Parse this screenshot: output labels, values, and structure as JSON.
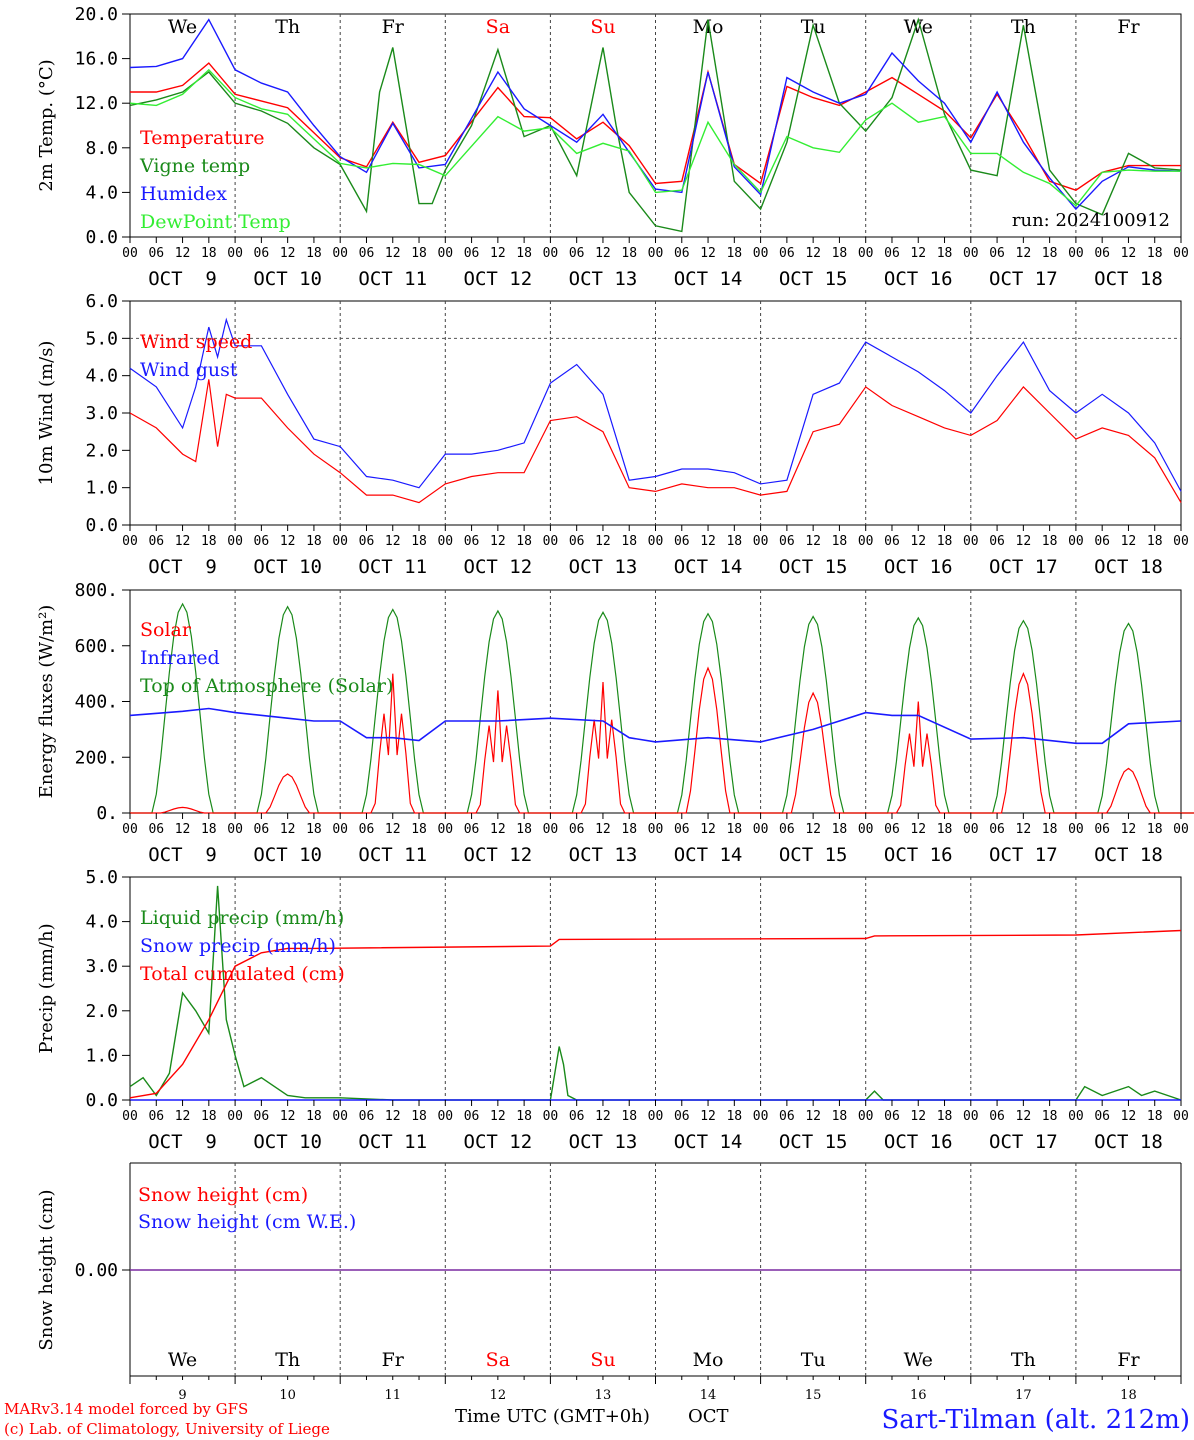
{
  "footer": {
    "model": "MARv3.14 model forced by GFS",
    "copyright": "(c) Lab. of Climatology, University of Liege",
    "xlabel": "Time UTC (GMT+0h)",
    "month": "OCT",
    "station": "Sart-Tilman (alt. 212m)"
  },
  "days": {
    "dates": [
      "9",
      "10",
      "11",
      "12",
      "13",
      "14",
      "15",
      "16",
      "17",
      "18"
    ],
    "date_labels": [
      "OCT  9",
      "OCT 10",
      "OCT 11",
      "OCT 12",
      "OCT 13",
      "OCT 14",
      "OCT 15",
      "OCT 16",
      "OCT 17",
      "OCT 18"
    ],
    "weekdays": [
      "We",
      "Th",
      "Fr",
      "Sa",
      "Su",
      "Mo",
      "Tu",
      "We",
      "Th",
      "Fr"
    ],
    "weekend_color": "#ff0000",
    "hour_ticks": [
      "00",
      "06",
      "12",
      "18"
    ]
  },
  "colors": {
    "red": "#ff0000",
    "green": "#1a8a1a",
    "blue": "#1a1aff",
    "lightgreen": "#33ee33",
    "purple": "#7a2aa0"
  },
  "chart_data": [
    {
      "type": "line",
      "ylabel": "2m Temp. (°C)",
      "ylim": [
        0,
        20
      ],
      "yticks": [
        "0.0",
        "4.0",
        "8.0",
        "12.0",
        "16.0",
        "20.0"
      ],
      "annotation": "run: 2024100912",
      "x_unit": "hours since Oct 9 00 UTC",
      "series": [
        {
          "name": "Temperature",
          "color": "red",
          "x": [
            0,
            6,
            12,
            18,
            24,
            36,
            48,
            54,
            60,
            66,
            72,
            84,
            90,
            96,
            102,
            108,
            114,
            120,
            126,
            132,
            138,
            144,
            150,
            156,
            162,
            168,
            174,
            180,
            186,
            192,
            198,
            204,
            210,
            216,
            222,
            228,
            234,
            240
          ],
          "y": [
            13.0,
            13.0,
            13.6,
            15.6,
            12.8,
            11.6,
            7.1,
            6.3,
            10.3,
            6.7,
            7.3,
            13.4,
            10.8,
            10.7,
            8.8,
            10.3,
            8.2,
            4.8,
            5.0,
            14.8,
            6.5,
            4.8,
            13.5,
            12.5,
            11.8,
            13.0,
            14.3,
            12.8,
            11.3,
            8.9,
            12.8,
            9.1,
            5.0,
            4.2,
            5.8,
            6.4,
            6.4,
            6.4
          ]
        },
        {
          "name": "Vigne temp",
          "color": "green",
          "x": [
            0,
            6,
            12,
            18,
            24,
            30,
            36,
            42,
            48,
            54,
            57,
            60,
            63,
            66,
            69,
            72,
            78,
            84,
            90,
            96,
            102,
            108,
            111,
            114,
            120,
            126,
            132,
            138,
            144,
            150,
            156,
            162,
            168,
            174,
            180,
            186,
            192,
            198,
            204,
            210,
            216,
            222,
            228,
            234,
            240
          ],
          "y": [
            11.8,
            12.3,
            13.0,
            14.8,
            12.0,
            11.3,
            10.2,
            8.0,
            6.5,
            2.3,
            13.0,
            17.0,
            10.0,
            3.0,
            3.0,
            6.0,
            10.0,
            16.8,
            9.0,
            10.0,
            5.5,
            17.0,
            10.0,
            4.0,
            1.0,
            0.5,
            19.5,
            5.0,
            2.5,
            8.5,
            19.0,
            12.0,
            9.5,
            12.5,
            19.5,
            11.0,
            6.0,
            5.5,
            19.0,
            6.0,
            3.0,
            2.0,
            7.5,
            6.2,
            6.0
          ]
        },
        {
          "name": "Humidex",
          "color": "blue",
          "x": [
            0,
            6,
            12,
            18,
            24,
            30,
            36,
            42,
            48,
            54,
            60,
            66,
            72,
            84,
            90,
            96,
            102,
            108,
            114,
            120,
            126,
            132,
            138,
            144,
            150,
            156,
            162,
            168,
            174,
            180,
            186,
            192,
            198,
            204,
            210,
            216,
            222,
            228,
            234,
            240
          ],
          "y": [
            15.2,
            15.3,
            16.0,
            19.5,
            15.0,
            13.8,
            13.0,
            10.0,
            7.2,
            5.8,
            10.2,
            6.2,
            6.5,
            14.8,
            11.5,
            10.0,
            8.5,
            11.0,
            7.6,
            4.3,
            4.0,
            14.8,
            6.3,
            3.8,
            14.3,
            13.0,
            12.0,
            12.8,
            16.5,
            14.0,
            12.0,
            8.5,
            13.0,
            8.5,
            5.3,
            2.5,
            5.0,
            6.3,
            6.0,
            5.9
          ]
        },
        {
          "name": "DewPoint Temp",
          "color": "lightgreen",
          "x": [
            0,
            6,
            12,
            18,
            24,
            30,
            36,
            42,
            48,
            54,
            60,
            66,
            72,
            84,
            90,
            96,
            102,
            108,
            114,
            120,
            126,
            132,
            138,
            144,
            150,
            156,
            162,
            168,
            174,
            180,
            186,
            192,
            198,
            204,
            210,
            216,
            222,
            228,
            234,
            240
          ],
          "y": [
            12.0,
            11.8,
            12.8,
            15.0,
            12.5,
            11.5,
            11.0,
            8.8,
            6.6,
            6.2,
            6.6,
            6.5,
            5.5,
            10.8,
            9.5,
            9.8,
            7.5,
            8.4,
            7.7,
            4.0,
            4.2,
            10.3,
            6.5,
            4.0,
            9.0,
            8.0,
            7.6,
            10.5,
            12.0,
            10.3,
            10.8,
            7.5,
            7.5,
            5.8,
            4.8,
            2.8,
            5.8,
            6.0,
            5.9,
            5.9
          ]
        }
      ]
    },
    {
      "type": "line",
      "ylabel": "10m Wind (m/s)",
      "ylim": [
        0,
        6
      ],
      "yticks": [
        "0.0",
        "1.0",
        "2.0",
        "3.0",
        "4.0",
        "5.0",
        "6.0"
      ],
      "x_unit": "hours since Oct 9 00 UTC",
      "series": [
        {
          "name": "Wind speed",
          "color": "red",
          "x": [
            0,
            6,
            12,
            15,
            18,
            20,
            22,
            24,
            30,
            36,
            42,
            48,
            54,
            60,
            66,
            72,
            78,
            84,
            90,
            96,
            102,
            108,
            114,
            120,
            126,
            132,
            138,
            144,
            150,
            156,
            162,
            168,
            174,
            180,
            186,
            192,
            198,
            204,
            210,
            216,
            222,
            228,
            234,
            240
          ],
          "y": [
            3.0,
            2.6,
            1.9,
            1.7,
            3.9,
            2.1,
            3.5,
            3.4,
            3.4,
            2.6,
            1.9,
            1.4,
            0.8,
            0.8,
            0.6,
            1.1,
            1.3,
            1.4,
            1.4,
            2.8,
            2.9,
            2.5,
            1.0,
            0.9,
            1.1,
            1.0,
            1.0,
            0.8,
            0.9,
            2.5,
            2.7,
            3.7,
            3.2,
            2.9,
            2.6,
            2.4,
            2.8,
            3.7,
            3.0,
            2.3,
            2.6,
            2.4,
            1.8,
            0.6
          ]
        },
        {
          "name": "Wind gust",
          "color": "blue",
          "x": [
            0,
            6,
            12,
            15,
            18,
            20,
            22,
            24,
            30,
            36,
            42,
            48,
            54,
            60,
            66,
            72,
            78,
            84,
            90,
            96,
            102,
            108,
            114,
            120,
            126,
            132,
            138,
            144,
            150,
            156,
            162,
            168,
            174,
            180,
            186,
            192,
            198,
            204,
            210,
            216,
            222,
            228,
            234,
            240
          ],
          "y": [
            4.2,
            3.7,
            2.6,
            3.7,
            5.3,
            4.5,
            5.5,
            4.8,
            4.8,
            3.5,
            2.3,
            2.1,
            1.3,
            1.2,
            1.0,
            1.9,
            1.9,
            2.0,
            2.2,
            3.8,
            4.3,
            3.5,
            1.2,
            1.3,
            1.5,
            1.5,
            1.4,
            1.1,
            1.2,
            3.5,
            3.8,
            4.9,
            4.5,
            4.1,
            3.6,
            3.0,
            4.0,
            4.9,
            3.6,
            3.0,
            3.5,
            3.0,
            2.2,
            0.9
          ]
        }
      ],
      "reference_line": 5.0
    },
    {
      "type": "line",
      "ylabel": "Energy fluxes (W/m²)",
      "ylim": [
        0,
        800
      ],
      "yticks": [
        "0.",
        "200.",
        "400.",
        "600.",
        "800."
      ],
      "x_unit": "hours since Oct 9 00 UTC",
      "series": [
        {
          "name": "Solar",
          "color": "red",
          "peaks": [
            20,
            140,
            500,
            440,
            470,
            520,
            430,
            400,
            500,
            160
          ]
        },
        {
          "name": "Infrared",
          "color": "blue",
          "x": [
            0,
            12,
            18,
            24,
            36,
            42,
            48,
            54,
            60,
            66,
            72,
            84,
            96,
            108,
            114,
            120,
            132,
            144,
            156,
            162,
            168,
            174,
            180,
            192,
            204,
            216,
            222,
            228,
            240
          ],
          "y": [
            350,
            365,
            375,
            360,
            340,
            330,
            330,
            270,
            270,
            260,
            330,
            330,
            340,
            330,
            270,
            255,
            270,
            255,
            300,
            330,
            360,
            350,
            350,
            265,
            270,
            250,
            250,
            320,
            330
          ]
        },
        {
          "name": "Top of Atmosphere (Solar)",
          "color": "green",
          "peaks": [
            750,
            740,
            730,
            725,
            720,
            715,
            705,
            700,
            690,
            680
          ]
        }
      ]
    },
    {
      "type": "line",
      "ylabel": "Precip (mm/h)",
      "ylim": [
        0,
        5
      ],
      "yticks": [
        "0.0",
        "1.0",
        "2.0",
        "3.0",
        "4.0",
        "5.0"
      ],
      "x_unit": "hours since Oct 9 00 UTC",
      "series": [
        {
          "name": "Liquid precip (mm/h)",
          "color": "green",
          "x": [
            0,
            3,
            6,
            9,
            12,
            15,
            18,
            20,
            22,
            24,
            26,
            30,
            33,
            36,
            40,
            48,
            60,
            96,
            98,
            99,
            100,
            102,
            108,
            168,
            170,
            172,
            216,
            218,
            222,
            228,
            231,
            234,
            240
          ],
          "y": [
            0.3,
            0.5,
            0.1,
            0.6,
            2.4,
            2.0,
            1.5,
            4.8,
            1.8,
            1.0,
            0.3,
            0.5,
            0.3,
            0.1,
            0.05,
            0.05,
            0,
            0,
            1.2,
            0.8,
            0.1,
            0,
            0,
            0,
            0.2,
            0,
            0,
            0.3,
            0.1,
            0.3,
            0.1,
            0.2,
            0
          ]
        },
        {
          "name": "Snow precip (mm/h)",
          "color": "blue",
          "x": [
            0,
            240
          ],
          "y": [
            0,
            0
          ]
        },
        {
          "name": "Total cumulated (cm)",
          "color": "red",
          "x": [
            0,
            6,
            12,
            18,
            24,
            30,
            36,
            42,
            96,
            98,
            168,
            170,
            216,
            240
          ],
          "y": [
            0.05,
            0.15,
            0.8,
            1.8,
            3.0,
            3.3,
            3.4,
            3.4,
            3.45,
            3.6,
            3.62,
            3.68,
            3.7,
            3.8
          ]
        }
      ]
    },
    {
      "type": "line",
      "ylabel": "Snow height (cm)",
      "yticks": [
        "0.00"
      ],
      "x_unit": "hours since Oct 9 00 UTC",
      "series": [
        {
          "name": "Snow height (cm)",
          "color": "red",
          "x": [
            0,
            240
          ],
          "y": [
            0,
            0
          ]
        },
        {
          "name": "Snow height (cm W.E.)",
          "color": "blue",
          "x": [
            0,
            240
          ],
          "y": [
            0,
            0
          ]
        }
      ]
    }
  ]
}
